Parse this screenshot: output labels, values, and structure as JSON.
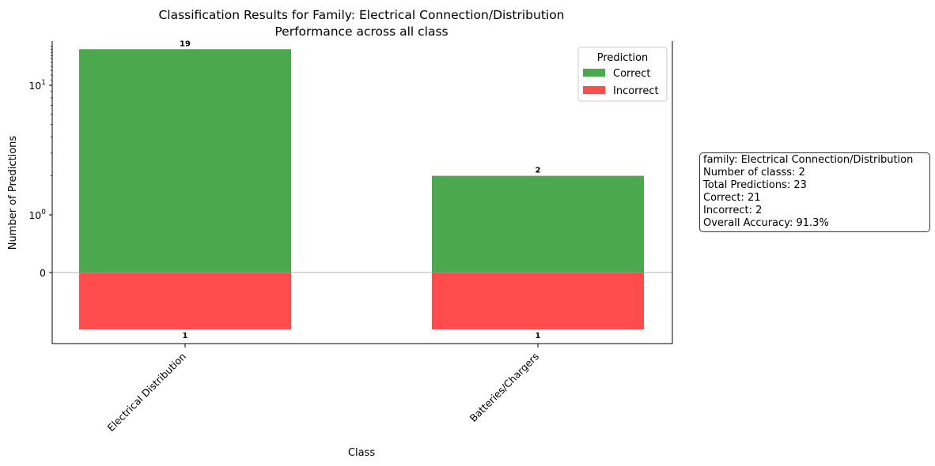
{
  "chart_data": {
    "type": "bar",
    "title": "Classification Results for Family: Electrical Connection/Distribution",
    "subtitle": "Performance across all class",
    "xlabel": "Class",
    "ylabel": "Number of Predictions",
    "yscale": "log",
    "categories": [
      "Electrical Distribution",
      "Batteries/Chargers"
    ],
    "series": [
      {
        "name": "Correct",
        "values": [
          19,
          2
        ],
        "color": "#4ca84c"
      },
      {
        "name": "Incorrect",
        "values": [
          1,
          1
        ],
        "color": "#ff4d4d"
      }
    ],
    "yticks": [
      {
        "label": "0"
      },
      {
        "base": "10",
        "exp": "0"
      },
      {
        "base": "10",
        "exp": "1"
      }
    ],
    "legend": {
      "title": "Prediction",
      "placement": "top-right"
    },
    "grid": false
  },
  "info_box": {
    "lines": [
      "family: Electrical Connection/Distribution",
      "Number of classs: 2",
      "Total Predictions: 23",
      "Correct: 21",
      "Incorrect: 2",
      "Overall Accuracy: 91.3%"
    ]
  }
}
